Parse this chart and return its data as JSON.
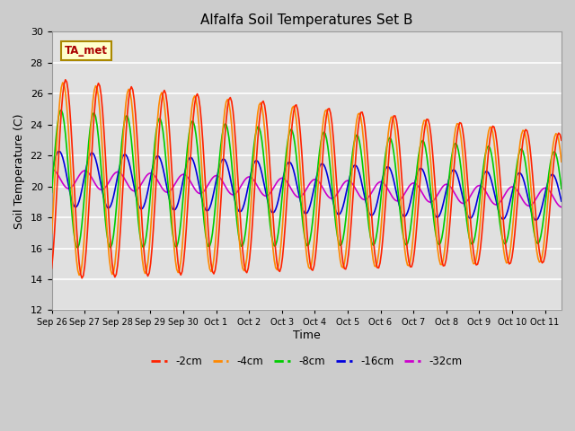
{
  "title": "Alfalfa Soil Temperatures Set B",
  "ylabel": "Soil Temperature (C)",
  "xlabel": "Time",
  "ylim": [
    12,
    30
  ],
  "bg_color": "#e8e8e8",
  "grid_color": "white",
  "series": {
    "-2cm": {
      "color": "#ff2200",
      "lw": 1.2
    },
    "-4cm": {
      "color": "#ff8800",
      "lw": 1.2
    },
    "-8cm": {
      "color": "#00cc00",
      "lw": 1.2
    },
    "-16cm": {
      "color": "#0000dd",
      "lw": 1.2
    },
    "-32cm": {
      "color": "#cc00cc",
      "lw": 1.2
    }
  },
  "xtick_labels": [
    "Sep 26",
    "Sep 27",
    "Sep 28",
    "Sep 29",
    "Sep 30",
    "Oct 1",
    "Oct 2",
    "Oct 3",
    "Oct 4",
    "Oct 5",
    "Oct 6",
    "Oct 7",
    "Oct 8",
    "Oct 9",
    "Oct 10",
    "Oct 11"
  ],
  "ta_met_box_color": "#ffffcc",
  "ta_met_text_color": "#aa0000",
  "ta_met_edge_color": "#aa8800"
}
